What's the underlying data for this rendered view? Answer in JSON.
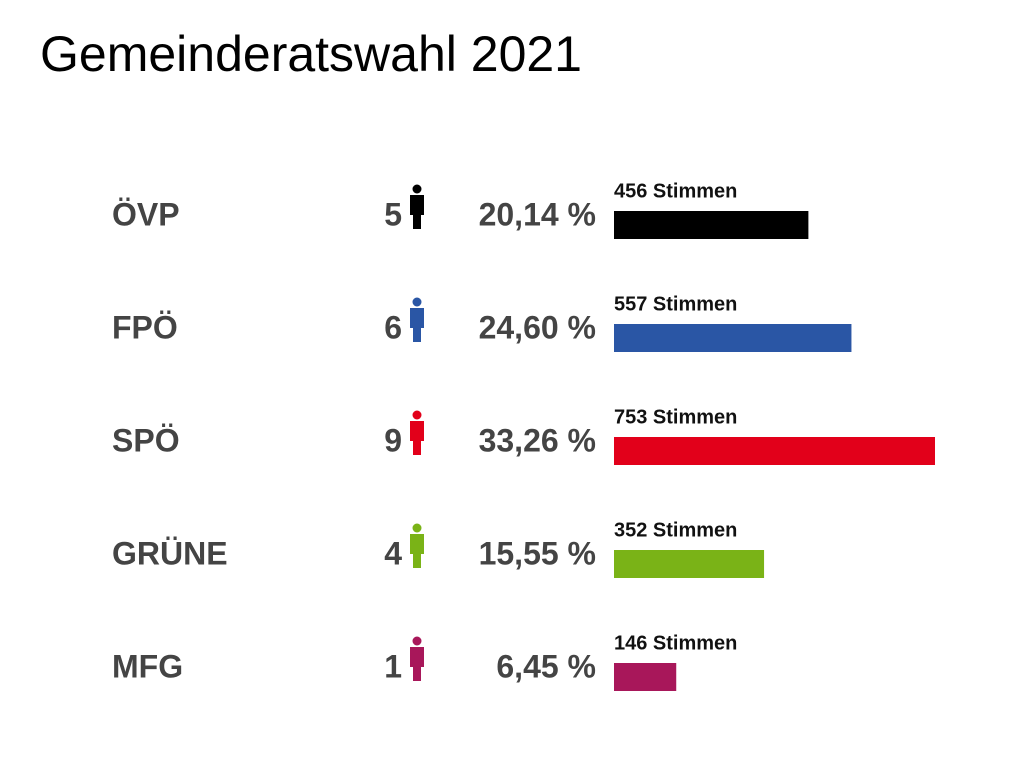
{
  "chart_data": {
    "type": "bar",
    "title": "Gemeinderatswahl 2021",
    "categories": [
      "ÖVP",
      "FPÖ",
      "SPÖ",
      "GRÜNE",
      "MFG"
    ],
    "seats": [
      5,
      6,
      9,
      4,
      1
    ],
    "shares": [
      20.14,
      24.6,
      33.26,
      15.55,
      6.45
    ],
    "share_labels": [
      "20,14 %",
      "24,60 %",
      "33,26 %",
      "15,55 %",
      "6,45 %"
    ],
    "values": [
      456,
      557,
      753,
      352,
      146
    ],
    "value_labels": [
      "456 Stimmen",
      "557 Stimmen",
      "753 Stimmen",
      "352 Stimmen",
      "146 Stimmen"
    ],
    "colors": [
      "#000000",
      "#2a56a5",
      "#e2001a",
      "#7ab317",
      "#a8175a"
    ]
  }
}
